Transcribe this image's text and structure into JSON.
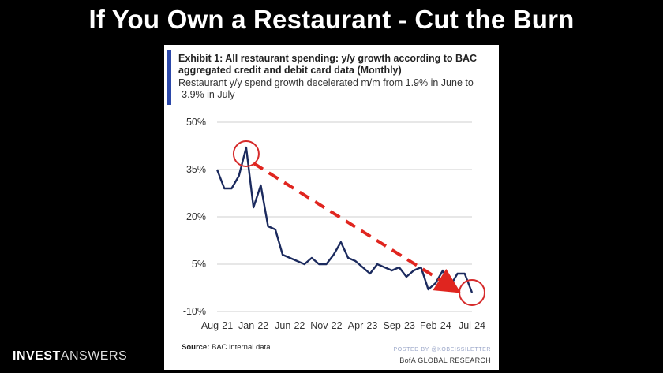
{
  "slide": {
    "title": "If You Own a Restaurant - Cut the Burn",
    "brand_bold": "INVEST",
    "brand_light": "ANSWERS"
  },
  "exhibit": {
    "title": "Exhibit 1: All restaurant spending: y/y growth according to BAC aggregated credit and debit card data (Monthly)",
    "subtitle": "Restaurant y/y spend growth decelerated m/m from 1.9% in June to -3.9% in July",
    "source_label": "Source:",
    "source_text": " BAC internal data",
    "posted_by": "POSTED BY @KOBEISSILETTER",
    "publisher": "BofA GLOBAL RESEARCH"
  },
  "chart_data": {
    "type": "line",
    "title": "Exhibit 1: All restaurant spending: y/y growth according to BAC aggregated credit and debit card data (Monthly)",
    "ylim": [
      -10,
      50
    ],
    "yticks": [
      50,
      35,
      20,
      5,
      -10
    ],
    "ytick_labels": [
      "50%",
      "35%",
      "20%",
      "5%",
      "-10%"
    ],
    "xtick_labels": [
      "Aug-21",
      "Jan-22",
      "Jun-22",
      "Nov-22",
      "Apr-23",
      "Sep-23",
      "Feb-24",
      "Jul-24"
    ],
    "x": [
      "Aug-21",
      "Sep-21",
      "Oct-21",
      "Nov-21",
      "Dec-21",
      "Jan-22",
      "Feb-22",
      "Mar-22",
      "Apr-22",
      "May-22",
      "Jun-22",
      "Jul-22",
      "Aug-22",
      "Sep-22",
      "Oct-22",
      "Nov-22",
      "Dec-22",
      "Jan-23",
      "Feb-23",
      "Mar-23",
      "Apr-23",
      "May-23",
      "Jun-23",
      "Jul-23",
      "Aug-23",
      "Sep-23",
      "Oct-23",
      "Nov-23",
      "Dec-23",
      "Jan-24",
      "Feb-24",
      "Mar-24",
      "Apr-24",
      "May-24",
      "Jun-24",
      "Jul-24"
    ],
    "series": [
      {
        "color": "#1b2a5e",
        "values": [
          35,
          29,
          29,
          33,
          42,
          23,
          30,
          17,
          16,
          8,
          7,
          6,
          5,
          7,
          5,
          5,
          8,
          12,
          7,
          6,
          4,
          2,
          5,
          4,
          3,
          4,
          1,
          3,
          4,
          -3,
          -1,
          3,
          -2,
          2,
          2,
          -4
        ]
      }
    ],
    "annotations": [
      {
        "type": "circle",
        "at": "Dec-21",
        "value": 40,
        "color": "#d62b2b"
      },
      {
        "type": "circle",
        "at": "Jul-24",
        "value": -4,
        "color": "#d62b2b"
      },
      {
        "type": "dashed-arrow",
        "from": {
          "at": "Jan-22",
          "value": 37
        },
        "to": {
          "at": "Apr-24",
          "value": -2
        },
        "color": "#e0251f"
      }
    ],
    "grid": true,
    "legend": "none"
  }
}
